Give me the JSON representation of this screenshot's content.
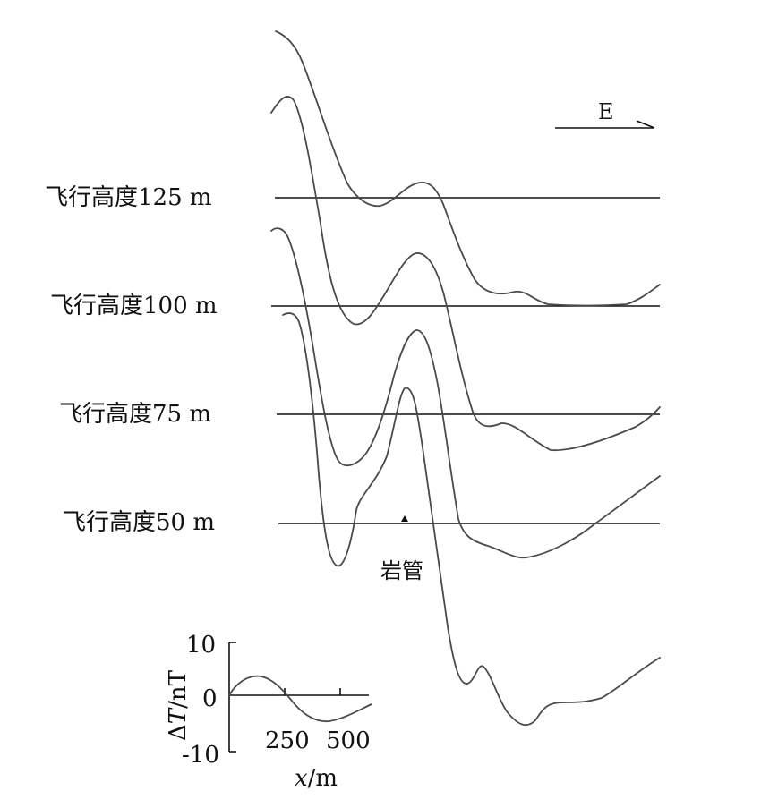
{
  "direction": {
    "label": "E"
  },
  "profiles": [
    {
      "label": "飞行高度125 m"
    },
    {
      "label": "飞行高度100 m"
    },
    {
      "label": "飞行高度75 m"
    },
    {
      "label": "飞行高度50 m"
    }
  ],
  "pipe": {
    "label": "岩管"
  },
  "legend_scale": {
    "y_axis_title_prefix": "Δ",
    "y_axis_title_var": "T",
    "y_axis_title_suffix": "/nT",
    "x_axis_title_var": "x",
    "x_axis_title_suffix": "/m",
    "y_ticks": [
      "10",
      "0",
      "-10"
    ],
    "x_ticks": [
      "250",
      "500"
    ]
  },
  "colors": {
    "curve": "#4a4a4a",
    "line": "#111111"
  }
}
